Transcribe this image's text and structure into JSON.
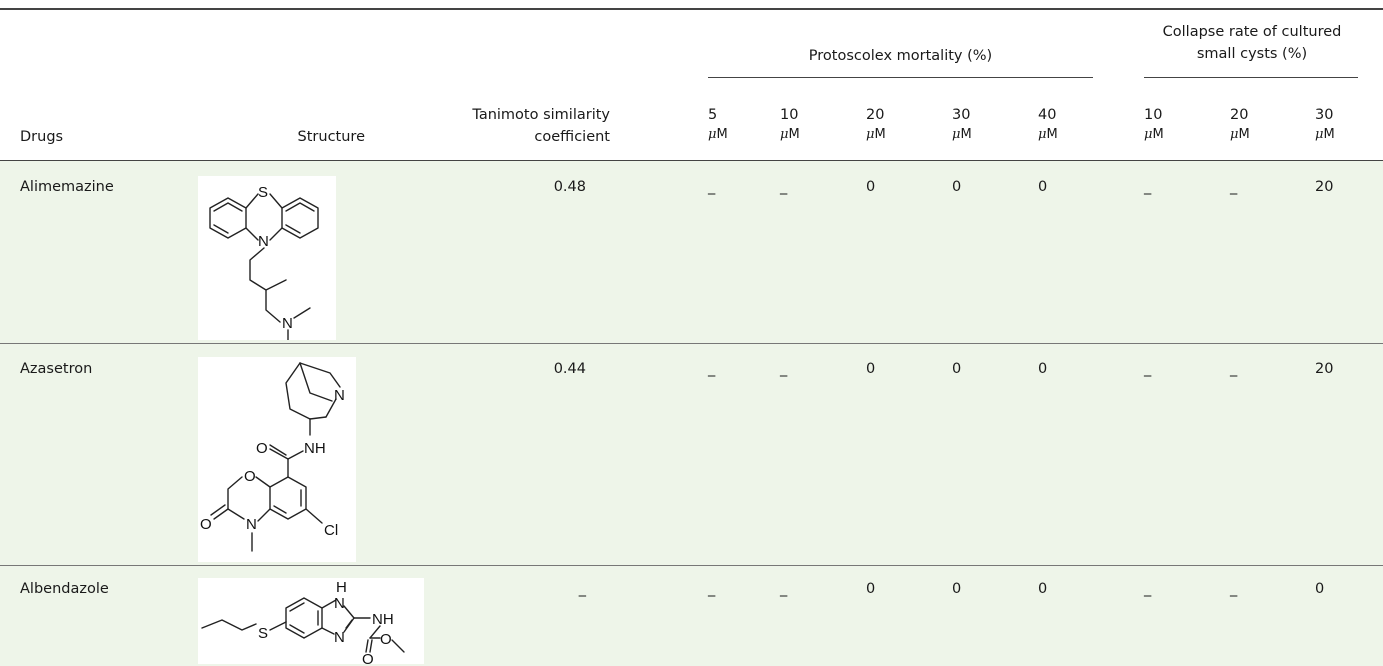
{
  "headers": {
    "drugs": "Drugs",
    "structure": "Structure",
    "tanimoto_line1": "Tanimoto similarity",
    "tanimoto_line2": "coefficient",
    "mortality_group": "Protoscolex mortality (%)",
    "collapse_line1": "Collapse rate of cultured",
    "collapse_line2": "small cysts (%)",
    "unit": "M",
    "unit_prefix": "μ",
    "mortality_conc": [
      "5",
      "10",
      "20",
      "30",
      "40"
    ],
    "collapse_conc": [
      "10",
      "20",
      "30"
    ]
  },
  "rows": [
    {
      "drug": "Alimemazine",
      "structure_icon": "alimemazine-structure",
      "tanimoto": "0.48",
      "mortality": [
        "_",
        "_",
        "0",
        "0",
        "0"
      ],
      "collapse": [
        "_",
        "_",
        "20"
      ]
    },
    {
      "drug": "Azasetron",
      "structure_icon": "azasetron-structure",
      "tanimoto": "0.44",
      "mortality": [
        "_",
        "_",
        "0",
        "0",
        "0"
      ],
      "collapse": [
        "_",
        "_",
        "20"
      ],
      "atoms": {
        "n1": "N",
        "nh": "NH",
        "o1": "O",
        "o2": "O",
        "o3": "O",
        "n2": "N",
        "cl": "Cl"
      }
    },
    {
      "drug": "Albendazole",
      "structure_icon": "albendazole-structure",
      "tanimoto": "_",
      "mortality": [
        "_",
        "_",
        "0",
        "0",
        "0"
      ],
      "collapse": [
        "_",
        "_",
        "0"
      ],
      "atoms": {
        "h": "H",
        "n1": "N",
        "n2": "N",
        "nh": "NH",
        "s": "S",
        "o1": "O",
        "o2": "O"
      }
    }
  ],
  "alimemazine_atoms": {
    "s": "S",
    "n1": "N",
    "n2": "N"
  },
  "colors": {
    "row_band": "#eef5e9",
    "rule": "#444444"
  }
}
